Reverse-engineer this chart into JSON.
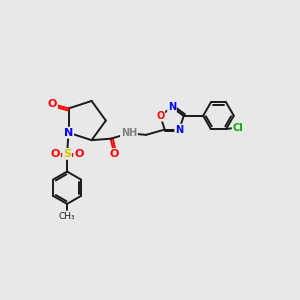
{
  "bg_color": "#e8e8e8",
  "bond_color": "#1a1a1a",
  "atom_colors": {
    "O": "#ff0000",
    "N": "#0000ff",
    "S": "#cccc00",
    "Cl": "#00aa00",
    "H": "#808080"
  },
  "lw": 1.4,
  "fs": 7.0
}
